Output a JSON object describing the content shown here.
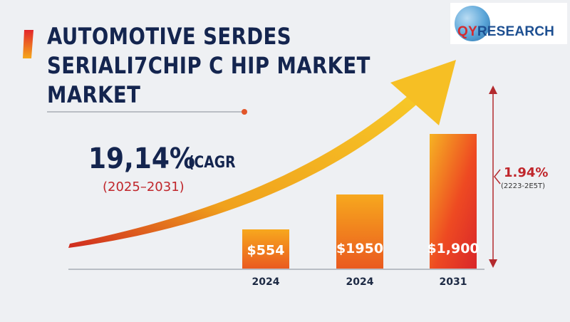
{
  "title": {
    "lines": [
      "AUTOMOTIVE SERDES",
      "SERIALI7CHIP C HIP MARKET",
      "MARKET"
    ]
  },
  "cagr": {
    "value": "19,14%",
    "label": "(CAGR",
    "period": "(2025–2031)"
  },
  "side_annotation": {
    "value": "1.94%",
    "period": "(2223-2E5T)"
  },
  "logo": {
    "part1": "QY",
    "part2": "RESEARCH"
  },
  "colors": {
    "title": "#14254f",
    "accent_red": "#c0262b",
    "bar_top": "#f6a21b",
    "bar_bottom": "#e8501f",
    "arrow_gold": "#f5b81d",
    "arrow_red": "#d8321f"
  },
  "chart_data": {
    "type": "bar",
    "categories": [
      "2024",
      "2024",
      "2031"
    ],
    "values": [
      554,
      1950,
      1900
    ],
    "value_labels": [
      "$554",
      "$1950",
      "$1,900"
    ],
    "trend_arrow": "upward curved growth arrow",
    "legend": "none",
    "grid": false
  }
}
